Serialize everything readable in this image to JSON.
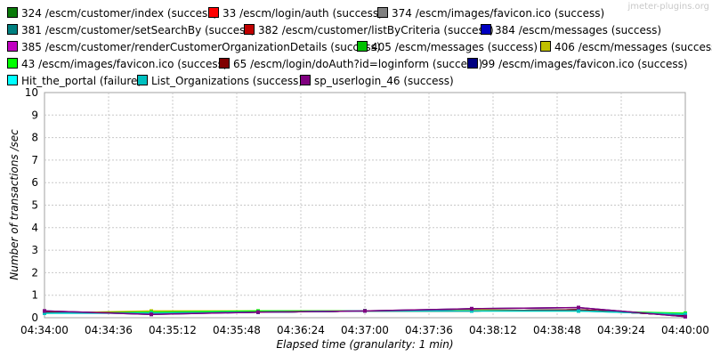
{
  "watermark": "jmeter-plugins.org",
  "chart_data": {
    "type": "line",
    "xlabel": "Elapsed time (granularity: 1 min)",
    "ylabel": "Number of transactions /sec",
    "ylim": [
      0,
      10
    ],
    "yticks": [
      "0",
      "1",
      "2",
      "3",
      "4",
      "5",
      "6",
      "7",
      "8",
      "9",
      "10"
    ],
    "xticks": [
      "04:34:00",
      "04:34:36",
      "04:35:12",
      "04:35:48",
      "04:36:24",
      "04:37:00",
      "04:37:36",
      "04:38:12",
      "04:38:48",
      "04:39:24",
      "04:40:00"
    ],
    "grid": true,
    "legend_position": "top",
    "series": [
      {
        "name": "324 /escm/customer/index (success)",
        "color": "#0a7a0a",
        "points": [
          [
            "04:34:00",
            0.25
          ],
          [
            "04:35:00",
            0.2
          ],
          [
            "04:36:00",
            0.25
          ],
          [
            "04:37:00",
            0.3
          ],
          [
            "04:38:00",
            0.3
          ],
          [
            "04:39:00",
            0.35
          ],
          [
            "04:40:00",
            0.1
          ]
        ]
      },
      {
        "name": "33 /escm/login/auth (success)",
        "color": "#ff0000",
        "points": [
          [
            "04:34:00",
            0.25
          ],
          [
            "04:35:00",
            0.2
          ],
          [
            "04:36:00",
            0.25
          ],
          [
            "04:37:00",
            0.3
          ],
          [
            "04:38:00",
            0.3
          ],
          [
            "04:39:00",
            0.35
          ],
          [
            "04:40:00",
            0.1
          ]
        ]
      },
      {
        "name": "374 /escm/images/favicon.ico (success)",
        "color": "#808080",
        "points": [
          [
            "04:34:00",
            0.25
          ],
          [
            "04:35:00",
            0.2
          ],
          [
            "04:36:00",
            0.25
          ],
          [
            "04:37:00",
            0.3
          ],
          [
            "04:38:00",
            0.3
          ],
          [
            "04:39:00",
            0.35
          ],
          [
            "04:40:00",
            0.1
          ]
        ]
      },
      {
        "name": "381 /escm/customer/setSearchBy (success)",
        "color": "#008080",
        "points": [
          [
            "04:34:00",
            0.25
          ],
          [
            "04:35:00",
            0.2
          ],
          [
            "04:36:00",
            0.25
          ],
          [
            "04:37:00",
            0.3
          ],
          [
            "04:38:00",
            0.3
          ],
          [
            "04:39:00",
            0.35
          ],
          [
            "04:40:00",
            0.1
          ]
        ]
      },
      {
        "name": "382 /escm/customer/listByCriteria (success)",
        "color": "#c00000",
        "points": [
          [
            "04:34:00",
            0.25
          ],
          [
            "04:35:00",
            0.2
          ],
          [
            "04:36:00",
            0.25
          ],
          [
            "04:37:00",
            0.3
          ],
          [
            "04:38:00",
            0.3
          ],
          [
            "04:39:00",
            0.35
          ],
          [
            "04:40:00",
            0.1
          ]
        ]
      },
      {
        "name": "384 /escm/messages (success)",
        "color": "#0000c0",
        "points": [
          [
            "04:34:00",
            0.25
          ],
          [
            "04:35:00",
            0.2
          ],
          [
            "04:36:00",
            0.25
          ],
          [
            "04:37:00",
            0.3
          ],
          [
            "04:38:00",
            0.3
          ],
          [
            "04:39:00",
            0.35
          ],
          [
            "04:40:00",
            0.1
          ]
        ]
      },
      {
        "name": "385 /escm/customer/renderCustomerOrganizationDetails (success)",
        "color": "#c000c0",
        "points": [
          [
            "04:34:00",
            0.25
          ],
          [
            "04:35:00",
            0.2
          ],
          [
            "04:36:00",
            0.25
          ],
          [
            "04:37:00",
            0.3
          ],
          [
            "04:38:00",
            0.3
          ],
          [
            "04:39:00",
            0.35
          ],
          [
            "04:40:00",
            0.1
          ]
        ]
      },
      {
        "name": "405 /escm/messages (success)",
        "color": "#00c000",
        "points": [
          [
            "04:34:00",
            0.25
          ],
          [
            "04:35:00",
            0.2
          ],
          [
            "04:36:00",
            0.25
          ],
          [
            "04:37:00",
            0.3
          ],
          [
            "04:38:00",
            0.3
          ],
          [
            "04:39:00",
            0.35
          ],
          [
            "04:40:00",
            0.1
          ]
        ]
      },
      {
        "name": "406 /escm/messages (success)",
        "color": "#c0c000",
        "points": [
          [
            "04:34:00",
            0.2
          ],
          [
            "04:35:00",
            0.3
          ],
          [
            "04:36:00",
            0.3
          ],
          [
            "04:37:00",
            0.3
          ],
          [
            "04:38:00",
            0.35
          ],
          [
            "04:39:00",
            0.3
          ],
          [
            "04:40:00",
            0.15
          ]
        ]
      },
      {
        "name": "43 /escm/images/favicon.ico (success)",
        "color": "#00ff00",
        "points": [
          [
            "04:34:00",
            0.2
          ],
          [
            "04:35:00",
            0.25
          ],
          [
            "04:36:00",
            0.3
          ],
          [
            "04:37:00",
            0.3
          ],
          [
            "04:38:00",
            0.3
          ],
          [
            "04:39:00",
            0.3
          ],
          [
            "04:40:00",
            0.2
          ]
        ]
      },
      {
        "name": "65 /escm/login/doAuth?id=loginform (success)",
        "color": "#800000",
        "points": [
          [
            "04:34:00",
            0.25
          ],
          [
            "04:35:00",
            0.2
          ],
          [
            "04:36:00",
            0.25
          ],
          [
            "04:37:00",
            0.3
          ],
          [
            "04:38:00",
            0.3
          ],
          [
            "04:39:00",
            0.35
          ],
          [
            "04:40:00",
            0.1
          ]
        ]
      },
      {
        "name": "99 /escm/images/favicon.ico (success)",
        "color": "#000080",
        "points": [
          [
            "04:34:00",
            0.3
          ],
          [
            "04:35:00",
            0.15
          ],
          [
            "04:36:00",
            0.25
          ],
          [
            "04:37:00",
            0.3
          ],
          [
            "04:38:00",
            0.4
          ],
          [
            "04:39:00",
            0.45
          ],
          [
            "04:40:00",
            0.05
          ]
        ]
      },
      {
        "name": "Hit_the_portal (failure)",
        "color": "#00ffff",
        "points": [
          [
            "04:34:00",
            0.2
          ],
          [
            "04:35:00",
            0.2
          ],
          [
            "04:36:00",
            0.25
          ],
          [
            "04:37:00",
            0.3
          ],
          [
            "04:38:00",
            0.3
          ],
          [
            "04:39:00",
            0.3
          ],
          [
            "04:40:00",
            0.15
          ]
        ]
      },
      {
        "name": "List_Organizations (success)",
        "color": "#00c0c0",
        "points": [
          [
            "04:34:00",
            0.2
          ],
          [
            "04:35:00",
            0.2
          ],
          [
            "04:36:00",
            0.25
          ],
          [
            "04:37:00",
            0.3
          ],
          [
            "04:38:00",
            0.3
          ],
          [
            "04:39:00",
            0.3
          ],
          [
            "04:40:00",
            0.15
          ]
        ]
      },
      {
        "name": "sp_userlogin_46 (success)",
        "color": "#800080",
        "points": [
          [
            "04:34:00",
            0.3
          ],
          [
            "04:35:00",
            0.15
          ],
          [
            "04:36:00",
            0.25
          ],
          [
            "04:37:00",
            0.3
          ],
          [
            "04:38:00",
            0.4
          ],
          [
            "04:39:00",
            0.45
          ],
          [
            "04:40:00",
            0.05
          ]
        ]
      }
    ]
  }
}
